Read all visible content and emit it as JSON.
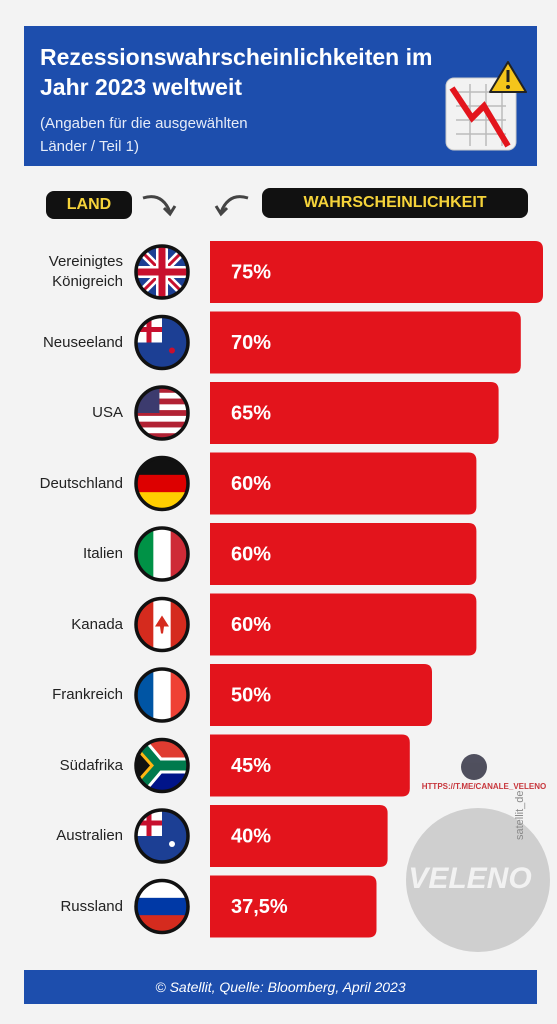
{
  "chart_data": {
    "type": "bar",
    "orientation": "horizontal",
    "title": "Rezessionswahrscheinlichkeiten im Jahr 2023 weltweit",
    "subtitle": "(Angaben für die ausgewählten Länder / Teil 1)",
    "category_header": "LAND",
    "value_header": "WAHRSCHEINLICHKEIT",
    "categories": [
      "Vereinigtes Königreich",
      "Neuseeland",
      "USA",
      "Deutschland",
      "Italien",
      "Kanada",
      "Frankreich",
      "Südafrika",
      "Australien",
      "Russland"
    ],
    "values": [
      75,
      70,
      65,
      60,
      60,
      60,
      50,
      45,
      40,
      37.5
    ],
    "value_labels": [
      "75%",
      "70%",
      "65%",
      "60%",
      "60%",
      "60%",
      "50%",
      "45%",
      "40%",
      "37,5%"
    ],
    "color": "#e3141c",
    "xlim": [
      0,
      75
    ],
    "footer": "© Satellit, Quelle:  Bloomberg, April 2023",
    "watermarks": [
      "HTTPS://T.ME/CANALE_VELENO",
      "satellit_de",
      "VELENO"
    ]
  }
}
